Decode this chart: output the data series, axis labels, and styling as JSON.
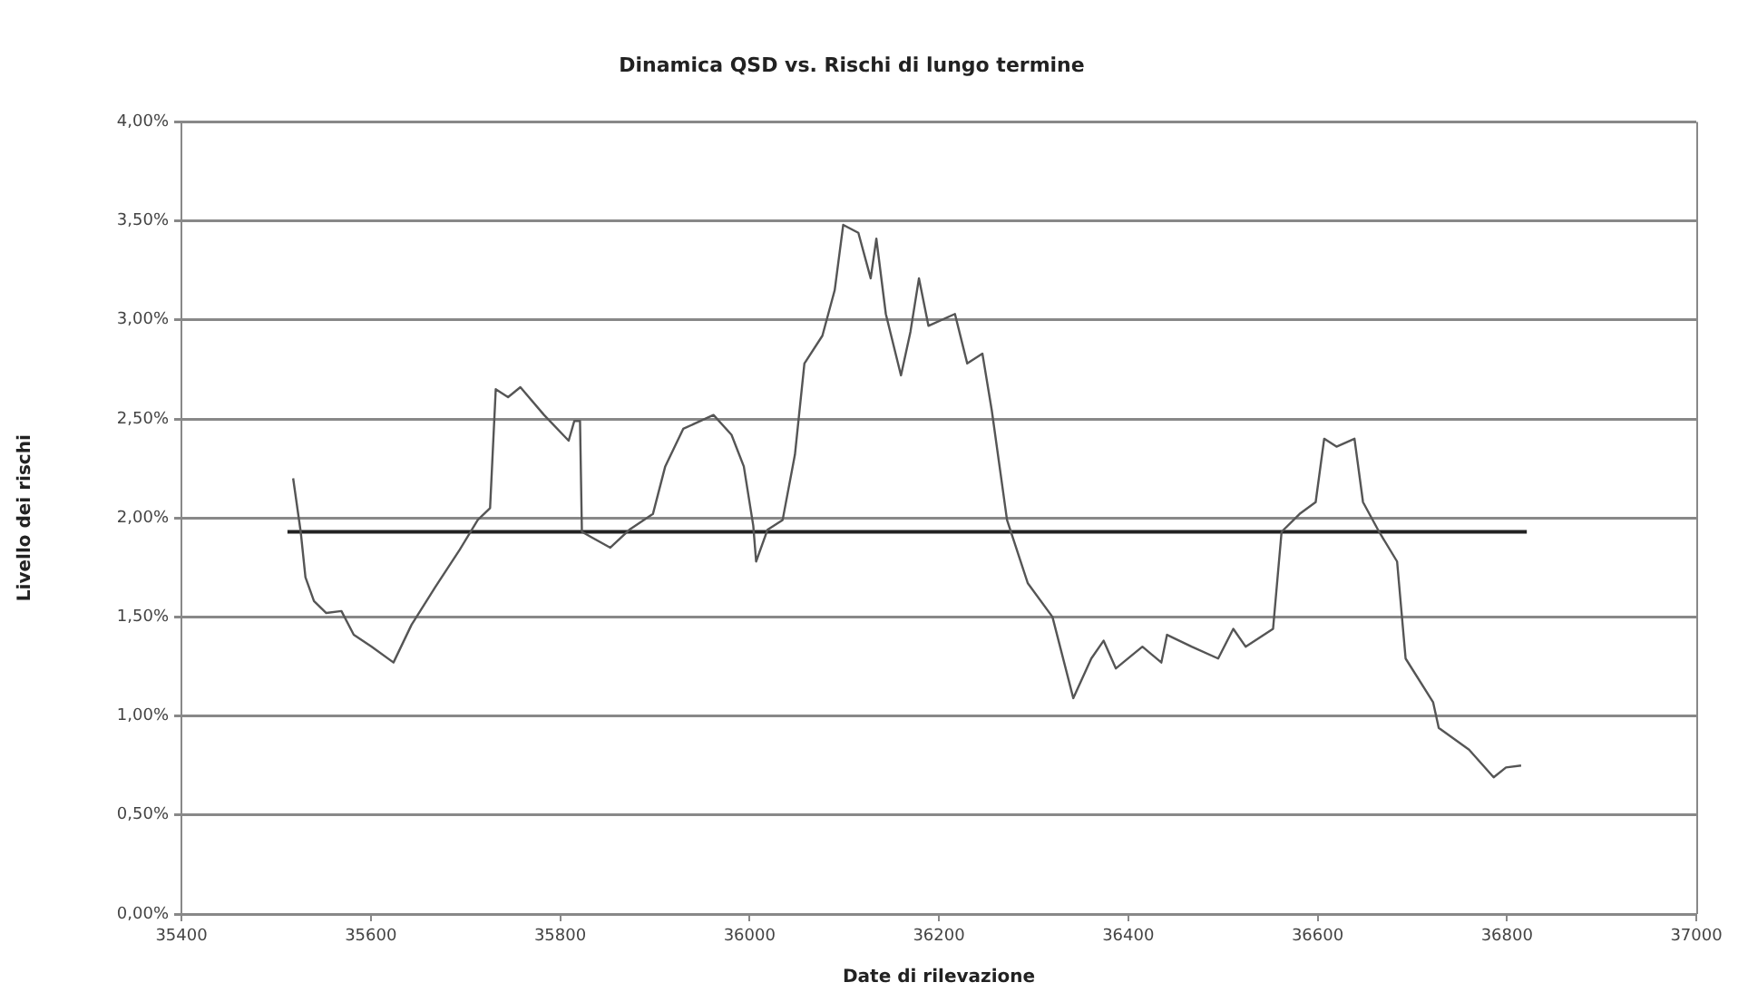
{
  "chart_data": {
    "type": "line",
    "title": "Dinamica QSD vs. Rischi di lungo termine",
    "xlabel": "Date di rilevazione",
    "ylabel": "Livello dei rischi",
    "xlim": [
      35400,
      37000
    ],
    "xticks": [
      35400,
      35600,
      35800,
      36000,
      36200,
      36400,
      36600,
      36800,
      37000
    ],
    "ylim": [
      0,
      4
    ],
    "yticks": [
      {
        "value": 0,
        "label": "0,00%"
      },
      {
        "value": 0.5,
        "label": "0,50%"
      },
      {
        "value": 1,
        "label": "1,00%"
      },
      {
        "value": 1.5,
        "label": "1,50%"
      },
      {
        "value": 2,
        "label": "2,00%"
      },
      {
        "value": 2.5,
        "label": "2,50%"
      },
      {
        "value": 3,
        "label": "3,00%"
      },
      {
        "value": 3.5,
        "label": "3,50%"
      },
      {
        "value": 4,
        "label": "4,00%"
      }
    ],
    "grid": "y",
    "legend": false,
    "marker": "none",
    "line_style": "solid",
    "series": [
      {
        "color": "#555555",
        "x": [
          35518,
          35526,
          35531,
          35540,
          35553,
          35569,
          35582,
          35601,
          35624,
          35643,
          35668,
          35694,
          35713,
          35726,
          35732,
          35745,
          35758,
          35783,
          35809,
          35815,
          35821,
          35823,
          35834,
          35853,
          35873,
          35898,
          35911,
          35930,
          35962,
          35981,
          35994,
          36004,
          36007,
          36019,
          36035,
          36048,
          36058,
          36077,
          36090,
          36099,
          36115,
          36128,
          36134,
          36144,
          36160,
          36170,
          36179,
          36189,
          36217,
          36230,
          36246,
          36256,
          36272,
          36294,
          36320,
          36342,
          36361,
          36374,
          36387,
          36415,
          36435,
          36441,
          36467,
          36495,
          36511,
          36524,
          36553,
          36562,
          36581,
          36598,
          36607,
          36620,
          36639,
          36648,
          36665,
          36684,
          36693,
          36722,
          36728,
          36760,
          36786,
          36799,
          36815
        ],
        "values": [
          2.2,
          1.93,
          1.7,
          1.58,
          1.52,
          1.53,
          1.41,
          1.35,
          1.27,
          1.46,
          1.65,
          1.84,
          1.99,
          2.05,
          2.65,
          2.61,
          2.66,
          2.52,
          2.39,
          2.49,
          2.49,
          1.93,
          1.9,
          1.85,
          1.94,
          2.02,
          2.26,
          2.45,
          2.52,
          2.42,
          2.26,
          1.96,
          1.78,
          1.94,
          1.99,
          2.32,
          2.78,
          2.92,
          3.15,
          3.48,
          3.44,
          3.21,
          3.41,
          3.03,
          2.72,
          2.94,
          3.21,
          2.97,
          3.03,
          2.78,
          2.83,
          2.54,
          1.99,
          1.67,
          1.5,
          1.09,
          1.29,
          1.38,
          1.24,
          1.35,
          1.27,
          1.41,
          1.35,
          1.29,
          1.44,
          1.35,
          1.44,
          1.93,
          2.02,
          2.08,
          2.4,
          2.36,
          2.4,
          2.08,
          1.93,
          1.78,
          1.29,
          1.07,
          0.94,
          0.83,
          0.69,
          0.74,
          0.75
        ]
      },
      {
        "color": "#222222",
        "x": [
          35512,
          36821
        ],
        "values": [
          1.93,
          1.93
        ]
      }
    ]
  }
}
